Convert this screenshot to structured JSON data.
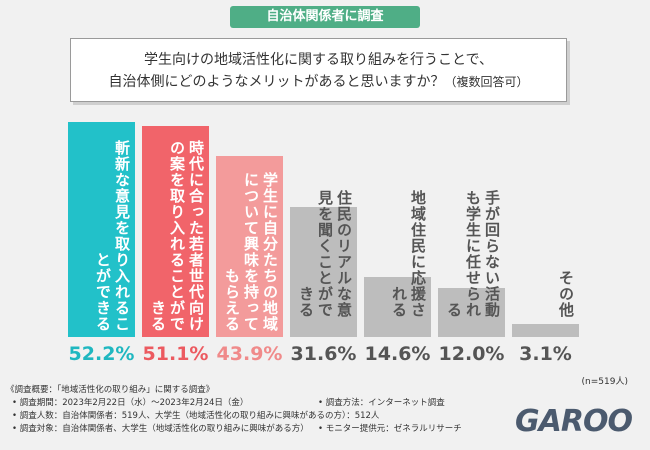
{
  "header": "自治体関係者に調査",
  "chart_data": {
    "type": "bar",
    "title": [
      "学生向けの地域活性化に関する取り組みを行うことで、",
      "自治体側にどのようなメリットがあると思いますか？"
    ],
    "subtitle": "（複数回答可）",
    "categories": [
      "斬新な意見を取り入れることができる",
      "時代に合った若者世代向けの案を取り入れることができる",
      "学生に自分たちの地域について興味を持ってもらえる",
      "住民のリアルな意見を聞くことができる",
      "地域住民に応援される",
      "手が回らない活動も学生に任せられる",
      "その他"
    ],
    "values": [
      52.2,
      51.1,
      43.9,
      31.6,
      14.6,
      12.0,
      3.1
    ],
    "value_labels": [
      "52.2%",
      "51.1%",
      "43.9%",
      "31.6%",
      "14.6%",
      "12.0%",
      "3.1%"
    ],
    "colors": [
      "#22c1c9",
      "#f1646a",
      "#f39b9b",
      "#bdbdbd",
      "#bdbdbd",
      "#bdbdbd",
      "#bdbdbd"
    ],
    "value_label_colors": [
      "#1fb7c0",
      "#ec5a60",
      "#f08a8a",
      "#555555",
      "#555555",
      "#555555",
      "#555555"
    ],
    "category_label_colors": [
      "#ffffff",
      "#ffffff",
      "#ffffff",
      "#555555",
      "#555555",
      "#555555",
      "#555555"
    ],
    "sample_size": "(n=519人)"
  },
  "notes": {
    "left": [
      "《調査概要：「地域活性化の取り組み」に関する調査》",
      "• 調査期間：2023年2月22日（水）〜2023年2月24日（金）",
      "• 調査人数：自治体関係者：519人、大学生（地域活性化の取り組みに興味があるの方）：512人",
      "• 調査対象：自治体関係者、大学生（地域活性化の取り組みに興味がある方）"
    ],
    "right": [
      "• 調査方法：インターネット調査",
      "• モニター提供元：ゼネラルリサーチ"
    ]
  },
  "logo": "GAROO"
}
